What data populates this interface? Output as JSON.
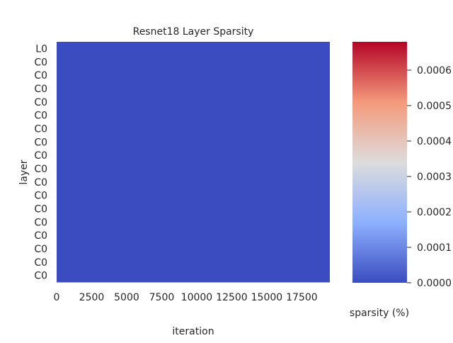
{
  "chart_data": {
    "type": "heatmap",
    "title": "Resnet18 Layer Sparsity",
    "xlabel": "iteration",
    "ylabel": "layer",
    "y_tick_labels": [
      "L0",
      "C0",
      "C0",
      "C0",
      "C0",
      "C0",
      "C0",
      "C0",
      "C0",
      "C0",
      "C0",
      "C0",
      "C0",
      "C0",
      "C0",
      "C0",
      "C0",
      "C0"
    ],
    "x_tick_labels": [
      "0",
      "2500",
      "5000",
      "7500",
      "10000",
      "12500",
      "15000",
      "17500"
    ],
    "x_ticks": [
      0,
      2500,
      5000,
      7500,
      10000,
      12500,
      15000,
      17500
    ],
    "xlim": [
      0,
      19500
    ],
    "values_uniform": 0.0,
    "colorbar": {
      "label": "sparsity (%)",
      "colormap": "coolwarm",
      "range": [
        0.0,
        0.00068
      ],
      "tick_values": [
        0.0,
        0.0001,
        0.0002,
        0.0003,
        0.0004,
        0.0005,
        0.0006
      ],
      "tick_labels": [
        "0.0000",
        "0.0001",
        "0.0002",
        "0.0003",
        "0.0004",
        "0.0005",
        "0.0006"
      ],
      "colors": {
        "low": "#3b4cc0",
        "mid_low": "#8db0fe",
        "mid": "#dddcdc",
        "mid_high": "#f49a7b",
        "high": "#b40426"
      }
    }
  }
}
